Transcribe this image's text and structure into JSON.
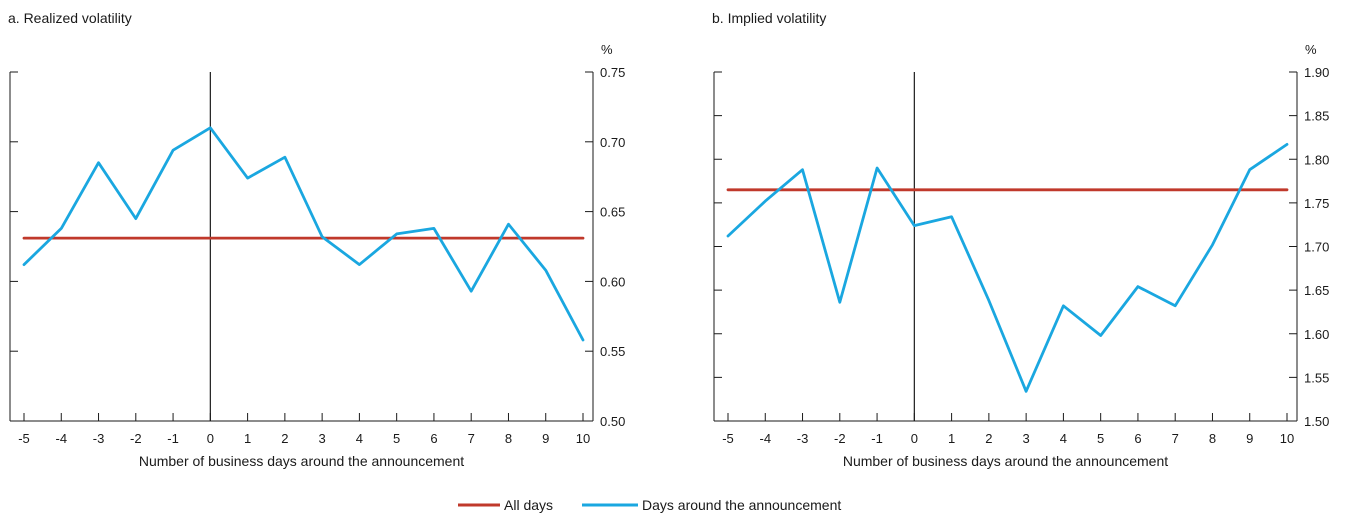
{
  "chart_data": [
    {
      "type": "line",
      "title": "a. Realized volatility",
      "xlabel": "Number of business days around the announcement",
      "ylabel": "%",
      "x": [
        -5,
        -4,
        -3,
        -2,
        -1,
        0,
        1,
        2,
        3,
        4,
        5,
        6,
        7,
        8,
        9,
        10
      ],
      "xlim": [
        -5,
        10
      ],
      "ylim": [
        0.5,
        0.75
      ],
      "yticks": [
        0.5,
        0.55,
        0.6,
        0.65,
        0.7,
        0.75
      ],
      "ytick_labels": [
        "0.50",
        "0.55",
        "0.60",
        "0.65",
        "0.70",
        "0.75"
      ],
      "y_axis_side": "right",
      "vline_x": 0,
      "series": [
        {
          "name": "All days",
          "color": "#c0392b",
          "values": [
            0.631,
            0.631,
            0.631,
            0.631,
            0.631,
            0.631,
            0.631,
            0.631,
            0.631,
            0.631,
            0.631,
            0.631,
            0.631,
            0.631,
            0.631,
            0.631
          ]
        },
        {
          "name": "Days around the announcement",
          "color": "#1aa7e0",
          "values": [
            0.612,
            0.638,
            0.685,
            0.645,
            0.694,
            0.71,
            0.674,
            0.689,
            0.632,
            0.612,
            0.634,
            0.638,
            0.593,
            0.641,
            0.608,
            0.558
          ]
        }
      ]
    },
    {
      "type": "line",
      "title": "b. Implied volatility",
      "xlabel": "Number of business days around the announcement",
      "ylabel": "%",
      "x": [
        -5,
        -4,
        -3,
        -2,
        -1,
        0,
        1,
        2,
        3,
        4,
        5,
        6,
        7,
        8,
        9,
        10
      ],
      "xlim": [
        -5,
        10
      ],
      "ylim": [
        1.5,
        1.9
      ],
      "yticks": [
        1.5,
        1.55,
        1.6,
        1.65,
        1.7,
        1.75,
        1.8,
        1.85,
        1.9
      ],
      "ytick_labels": [
        "1.50",
        "1.55",
        "1.60",
        "1.65",
        "1.70",
        "1.75",
        "1.80",
        "1.85",
        "1.90"
      ],
      "y_axis_side": "right",
      "vline_x": 0,
      "series": [
        {
          "name": "All days",
          "color": "#c0392b",
          "values": [
            1.765,
            1.765,
            1.765,
            1.765,
            1.765,
            1.765,
            1.765,
            1.765,
            1.765,
            1.765,
            1.765,
            1.765,
            1.765,
            1.765,
            1.765,
            1.765
          ]
        },
        {
          "name": "Days around the announcement",
          "color": "#1aa7e0",
          "values": [
            1.712,
            1.752,
            1.788,
            1.636,
            1.79,
            1.724,
            1.734,
            1.638,
            1.534,
            1.632,
            1.598,
            1.654,
            1.632,
            1.702,
            1.788,
            1.817
          ]
        }
      ]
    }
  ],
  "legend": {
    "placement": "bottom-center",
    "items": [
      {
        "label": "All days",
        "color": "#c0392b"
      },
      {
        "label": "Days around the announcement",
        "color": "#1aa7e0"
      }
    ]
  }
}
